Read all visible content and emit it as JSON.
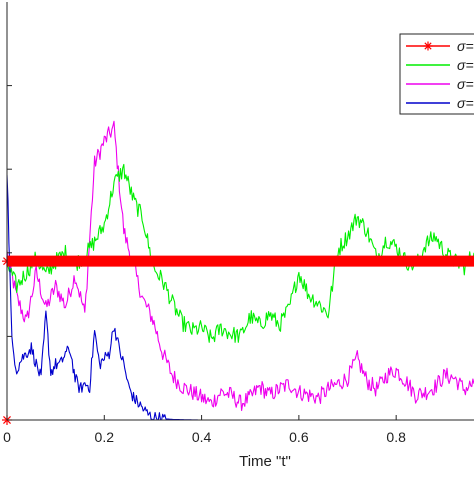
{
  "chart_data": {
    "type": "line",
    "xlabel": "Time \"t\"",
    "ylabel": "",
    "xlim": [
      0,
      0.96
    ],
    "ylim": [
      0,
      1.5
    ],
    "grid": false,
    "legend_position": "top-right",
    "x_ticks": [
      0,
      0.2,
      0.4,
      0.6,
      0.8
    ],
    "x_tick_labels": [
      "0",
      "0.2",
      "0.4",
      "0.6",
      "0.8"
    ],
    "y_ticks": [
      0,
      0.3,
      0.6,
      0.9,
      1.2
    ],
    "series": [
      {
        "name": "σ=",
        "color": "#ff0000",
        "marker": "asterisk",
        "x": [
          0,
          0.96
        ],
        "y": [
          0.57,
          0.57
        ]
      },
      {
        "name": "σ=",
        "color": "#00ee00",
        "marker": "none",
        "x": [
          0,
          0.02,
          0.04,
          0.06,
          0.08,
          0.1,
          0.12,
          0.14,
          0.16,
          0.18,
          0.2,
          0.22,
          0.24,
          0.26,
          0.28,
          0.3,
          0.32,
          0.34,
          0.36,
          0.38,
          0.4,
          0.42,
          0.44,
          0.46,
          0.48,
          0.5,
          0.52,
          0.54,
          0.56,
          0.58,
          0.6,
          0.62,
          0.64,
          0.66,
          0.68,
          0.7,
          0.72,
          0.74,
          0.76,
          0.78,
          0.8,
          0.82,
          0.84,
          0.86,
          0.88,
          0.9,
          0.92,
          0.94,
          0.96
        ],
        "y": [
          0.56,
          0.48,
          0.53,
          0.58,
          0.52,
          0.57,
          0.6,
          0.56,
          0.59,
          0.64,
          0.7,
          0.85,
          0.9,
          0.79,
          0.72,
          0.55,
          0.5,
          0.42,
          0.35,
          0.32,
          0.33,
          0.29,
          0.33,
          0.31,
          0.3,
          0.37,
          0.34,
          0.38,
          0.34,
          0.4,
          0.53,
          0.45,
          0.42,
          0.38,
          0.61,
          0.66,
          0.73,
          0.68,
          0.58,
          0.65,
          0.62,
          0.57,
          0.55,
          0.63,
          0.66,
          0.6,
          0.57,
          0.55,
          0.6
        ]
      },
      {
        "name": "σ=",
        "color": "#ee00ee",
        "marker": "none",
        "x": [
          0,
          0.02,
          0.04,
          0.06,
          0.08,
          0.1,
          0.12,
          0.14,
          0.16,
          0.18,
          0.2,
          0.22,
          0.24,
          0.26,
          0.28,
          0.3,
          0.32,
          0.34,
          0.36,
          0.38,
          0.4,
          0.42,
          0.44,
          0.46,
          0.48,
          0.5,
          0.52,
          0.54,
          0.56,
          0.58,
          0.6,
          0.62,
          0.64,
          0.66,
          0.68,
          0.7,
          0.72,
          0.74,
          0.76,
          0.78,
          0.8,
          0.82,
          0.84,
          0.86,
          0.88,
          0.9,
          0.92,
          0.94,
          0.96
        ],
        "y": [
          0.6,
          0.44,
          0.35,
          0.53,
          0.4,
          0.48,
          0.41,
          0.52,
          0.38,
          0.92,
          1.0,
          1.05,
          0.68,
          0.55,
          0.43,
          0.36,
          0.24,
          0.16,
          0.12,
          0.1,
          0.08,
          0.06,
          0.1,
          0.09,
          0.06,
          0.08,
          0.12,
          0.09,
          0.11,
          0.13,
          0.1,
          0.09,
          0.08,
          0.11,
          0.13,
          0.15,
          0.22,
          0.14,
          0.11,
          0.16,
          0.18,
          0.14,
          0.09,
          0.1,
          0.12,
          0.16,
          0.15,
          0.11,
          0.13
        ]
      },
      {
        "name": "σ=",
        "color": "#0000cc",
        "marker": "none",
        "x": [
          0,
          0.01,
          0.02,
          0.03,
          0.04,
          0.05,
          0.06,
          0.07,
          0.08,
          0.09,
          0.1,
          0.11,
          0.12,
          0.13,
          0.14,
          0.15,
          0.16,
          0.17,
          0.18,
          0.19,
          0.2,
          0.21,
          0.22,
          0.23,
          0.24,
          0.25,
          0.26,
          0.27,
          0.28,
          0.29,
          0.3,
          0.32,
          0.34,
          0.36,
          0.4,
          0.5,
          0.6,
          0.7,
          0.8,
          0.9,
          0.96
        ],
        "y": [
          0.9,
          0.28,
          0.18,
          0.22,
          0.24,
          0.26,
          0.2,
          0.15,
          0.38,
          0.17,
          0.2,
          0.2,
          0.24,
          0.25,
          0.15,
          0.11,
          0.13,
          0.12,
          0.32,
          0.2,
          0.22,
          0.24,
          0.34,
          0.26,
          0.2,
          0.12,
          0.08,
          0.06,
          0.04,
          0.02,
          0.01,
          0.005,
          0.002,
          0.001,
          0,
          0,
          0,
          0,
          0,
          0,
          0
        ]
      }
    ]
  }
}
